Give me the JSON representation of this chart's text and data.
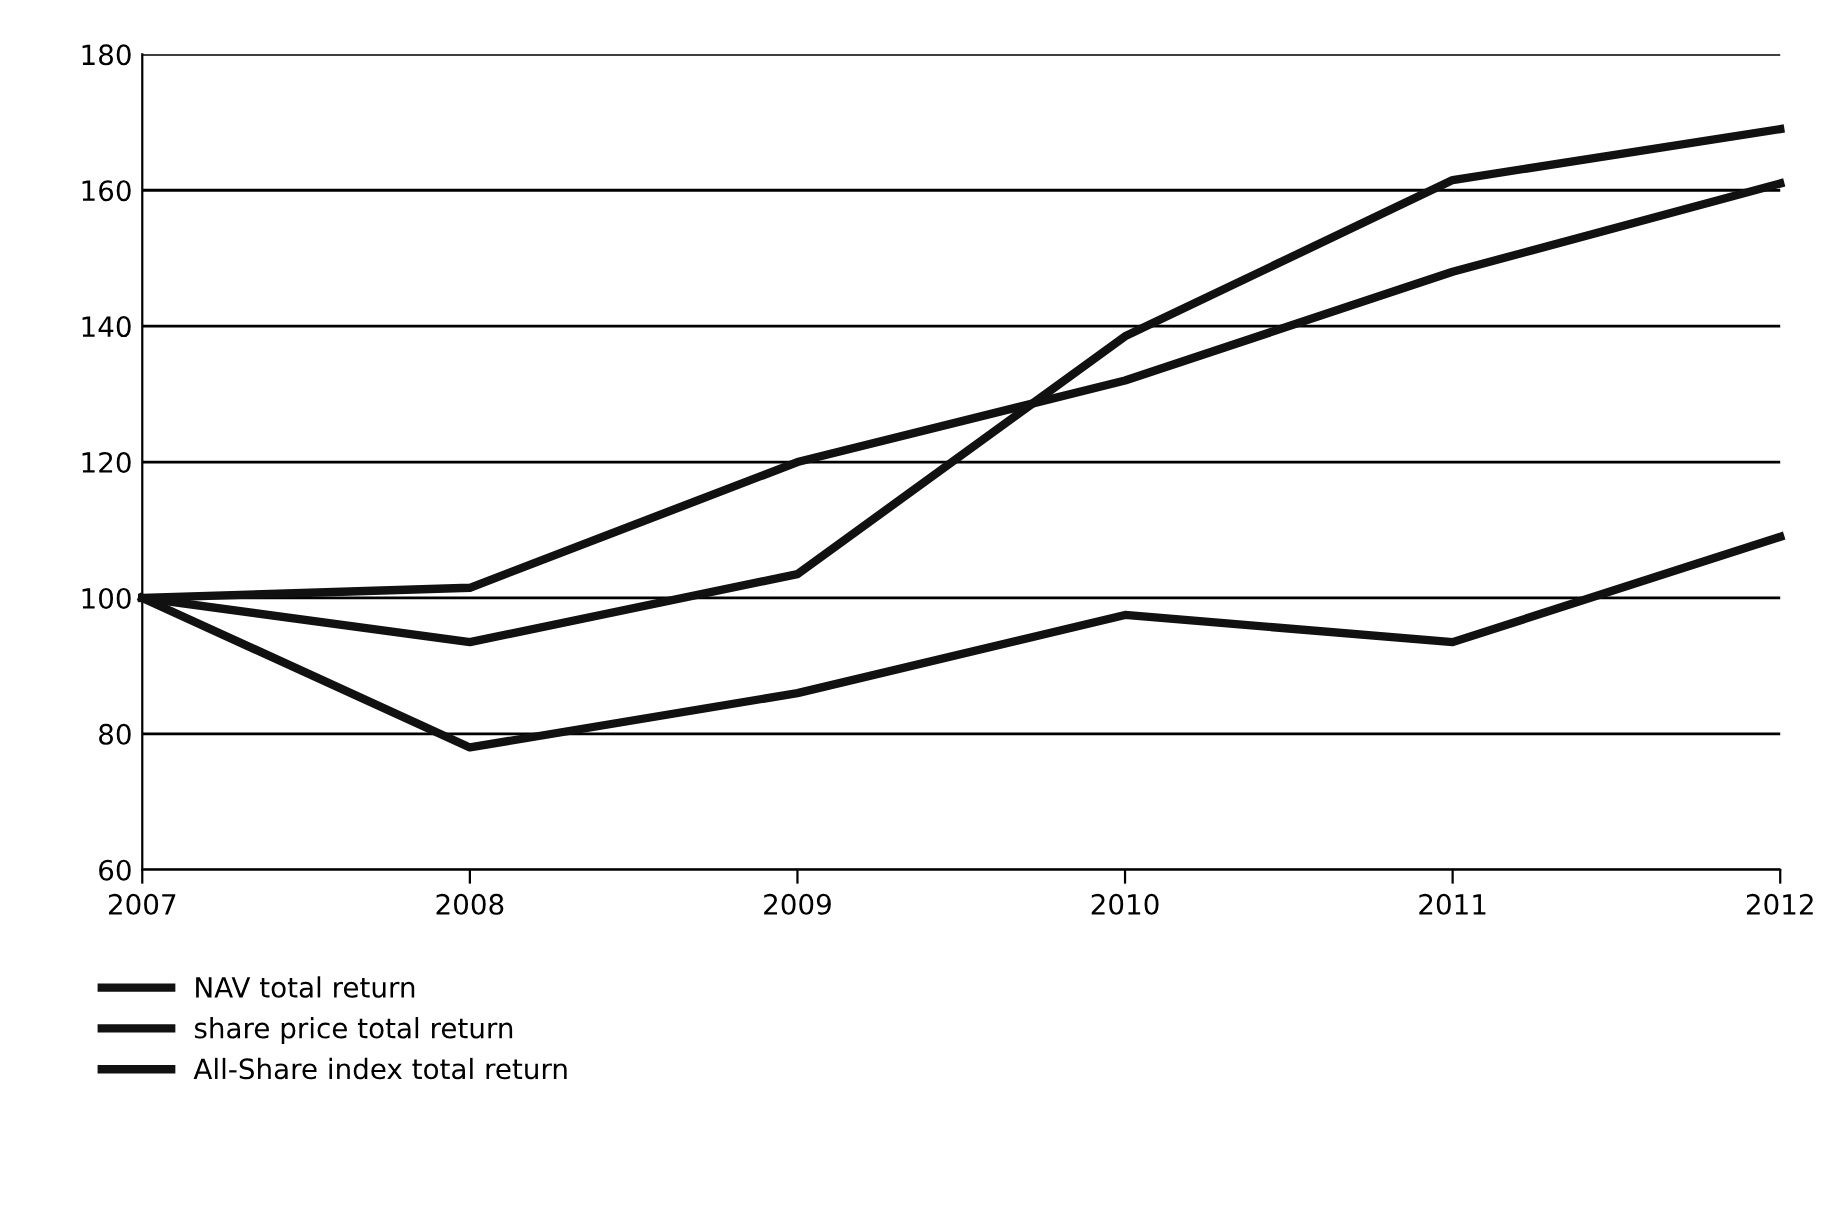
{
  "chart_data": {
    "type": "line",
    "x": [
      2007,
      2008,
      2009,
      2010,
      2011,
      2012
    ],
    "series": [
      {
        "name": "NAV total return",
        "color": "#111111",
        "values": [
          100,
          101.5,
          120,
          132,
          148,
          161
        ]
      },
      {
        "name": "share price total return",
        "color": "#111111",
        "values": [
          100,
          93.5,
          103.5,
          138.5,
          161.5,
          169
        ]
      },
      {
        "name": "All-Share index total return",
        "color": "#111111",
        "values": [
          100,
          78,
          86,
          97.5,
          93.5,
          109
        ]
      }
    ],
    "xlim": [
      2007,
      2012
    ],
    "xticks": [
      2007,
      2008,
      2009,
      2010,
      2011,
      2012
    ],
    "ylim": [
      60,
      180
    ],
    "yticks": [
      60,
      80,
      100,
      120,
      140,
      160,
      180
    ],
    "grid": "y",
    "legend": "bottom left",
    "marker": "none",
    "line_style": "solid"
  }
}
